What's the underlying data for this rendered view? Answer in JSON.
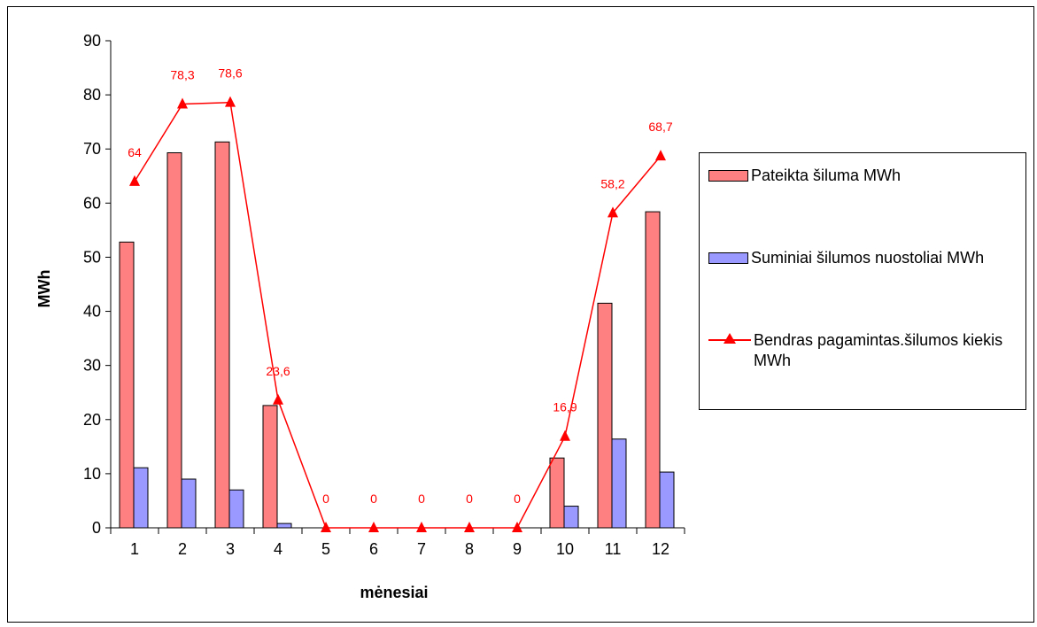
{
  "chart_data": {
    "type": "bar",
    "categories": [
      "1",
      "2",
      "3",
      "4",
      "5",
      "6",
      "7",
      "8",
      "9",
      "10",
      "11",
      "12"
    ],
    "xlabel": "mėnesiai",
    "ylabel": "MWh",
    "ylim": [
      0,
      90
    ],
    "yticks": [
      0,
      10,
      20,
      30,
      40,
      50,
      60,
      70,
      80,
      90
    ],
    "grid": false,
    "legend_position": "right",
    "series": [
      {
        "name": "Pateikta šiluma MWh",
        "kind": "bar",
        "color": "#ff8080",
        "values": [
          52.8,
          69.3,
          71.3,
          22.6,
          0,
          0,
          0,
          0,
          0,
          12.9,
          41.5,
          58.4
        ]
      },
      {
        "name": "Suminiai šilumos nuostoliai MWh",
        "kind": "bar",
        "color": "#9999ff",
        "values": [
          11.1,
          9.0,
          7.0,
          0.8,
          0,
          0,
          0,
          0,
          0,
          4.0,
          16.4,
          10.3
        ]
      },
      {
        "name": "Bendras pagamintas.šilumos kiekis MWh",
        "kind": "line",
        "color": "#ff0000",
        "values": [
          64,
          78.3,
          78.6,
          23.6,
          0,
          0,
          0,
          0,
          0,
          16.9,
          58.2,
          68.7
        ],
        "data_labels": [
          "64",
          "78,3",
          "78,6",
          "23,6",
          "0",
          "0",
          "0",
          "0",
          "0",
          "16,9",
          "58,2",
          "68,7"
        ]
      }
    ]
  }
}
